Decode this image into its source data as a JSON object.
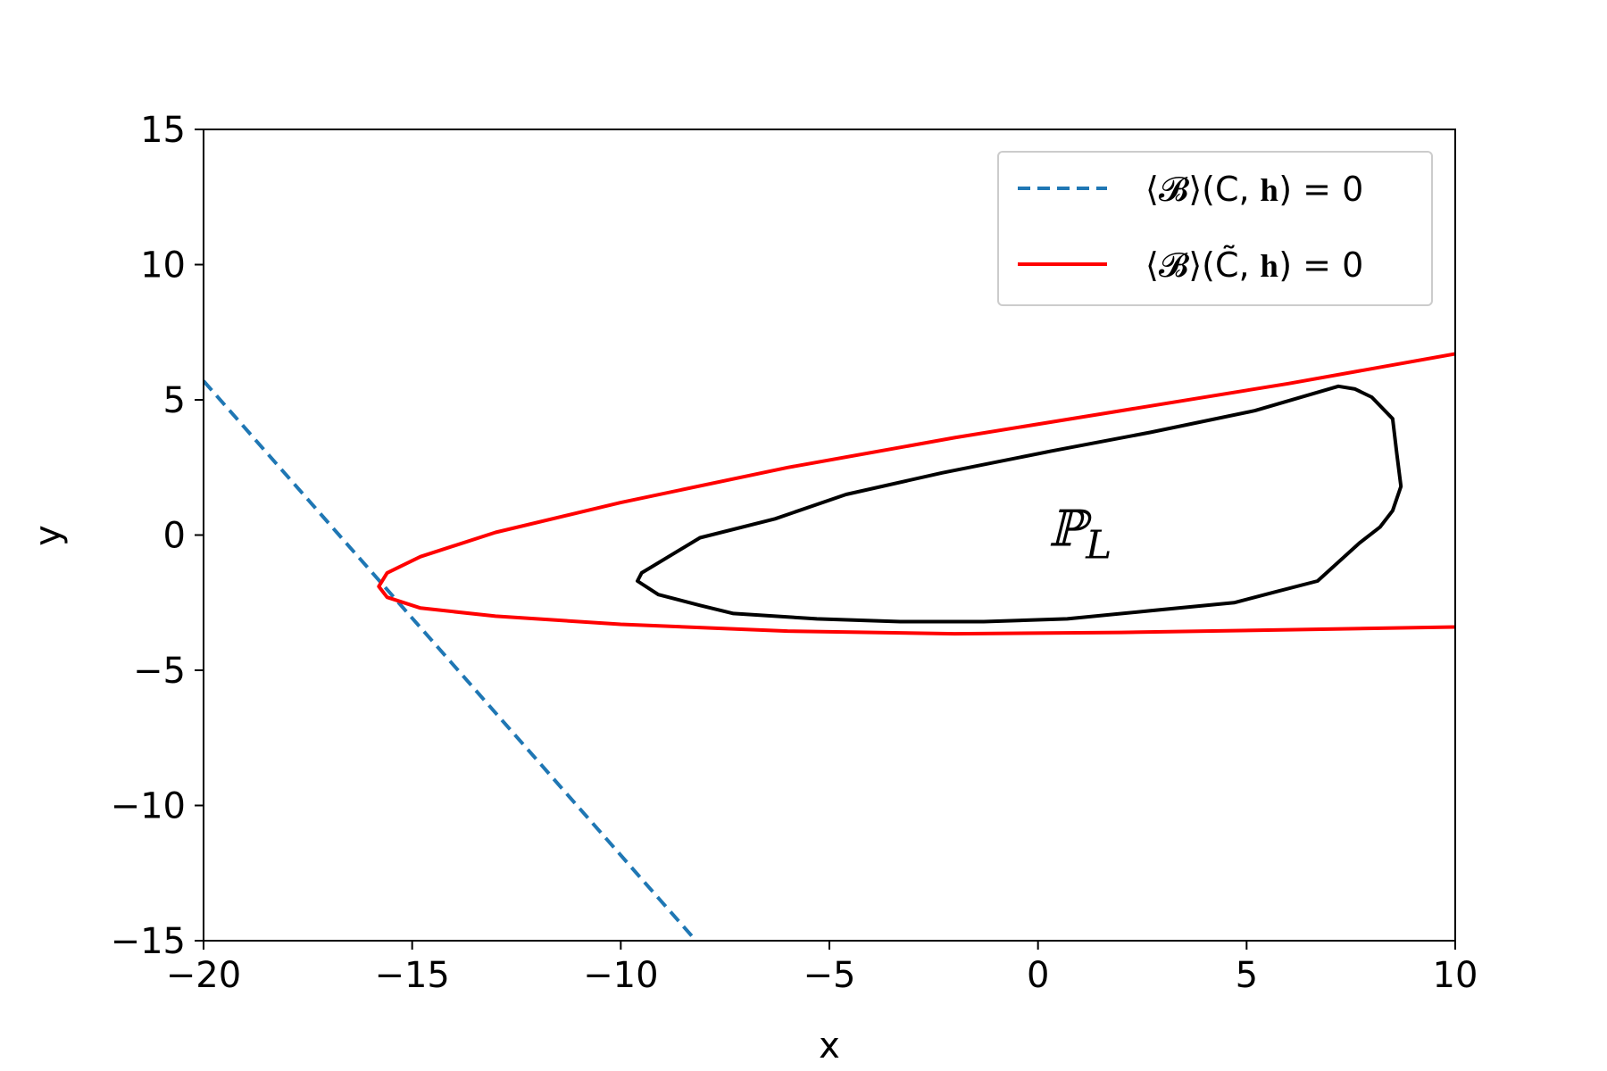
{
  "chart_data": {
    "type": "line",
    "title": "",
    "xlabel": "x",
    "ylabel": "y",
    "xlim": [
      -20,
      10
    ],
    "ylim": [
      -15,
      15
    ],
    "xticks": [
      -20,
      -15,
      -10,
      -5,
      0,
      5,
      10
    ],
    "yticks": [
      -15,
      -10,
      -5,
      0,
      5,
      10,
      15
    ],
    "xtick_labels": [
      "−20",
      "−15",
      "−10",
      "−5",
      "0",
      "5",
      "10"
    ],
    "ytick_labels": [
      "−15",
      "−10",
      "−5",
      "0",
      "5",
      "10",
      "15"
    ],
    "grid": false,
    "legend_position": "top-right",
    "series": [
      {
        "name": "⟨𝓑⟩(C, 𝐡) = 0",
        "style": "dashed",
        "color": "#1f77b4",
        "x": [
          -20,
          -8.2
        ],
        "y": [
          5.7,
          -15
        ]
      },
      {
        "name": "⟨𝓑⟩(C̃, 𝐡) = 0",
        "style": "solid",
        "color": "#ff0000",
        "x": [
          10,
          6,
          2,
          -2,
          -6,
          -10,
          -13,
          -14.8,
          -15.6,
          -15.8,
          -15.6,
          -14.8,
          -13,
          -10,
          -6,
          -2,
          2,
          6,
          10
        ],
        "y": [
          6.7,
          5.6,
          4.6,
          3.6,
          2.5,
          1.2,
          0.1,
          -0.8,
          -1.4,
          -1.9,
          -2.3,
          -2.7,
          -3.0,
          -3.3,
          -3.55,
          -3.65,
          -3.6,
          -3.5,
          -3.4
        ]
      }
    ],
    "region": {
      "label": "ℙ",
      "subscript": "L",
      "label_x": 0,
      "label_y": 0,
      "color": "#000000",
      "x": [
        7.2,
        7.6,
        8.0,
        8.5,
        8.6,
        8.7,
        8.5,
        8.2,
        7.7,
        6.7,
        5.7,
        4.7,
        2.7,
        0.7,
        -1.3,
        -3.3,
        -5.3,
        -7.3,
        -8.1,
        -9.1,
        -9.6,
        -9.5,
        -8.1,
        -6.3,
        -4.6,
        -2.3,
        0.3,
        2.7,
        5.2,
        7.2
      ],
      "y": [
        5.5,
        5.4,
        5.1,
        4.3,
        3.0,
        1.8,
        0.9,
        0.3,
        -0.3,
        -1.7,
        -2.1,
        -2.5,
        -2.8,
        -3.1,
        -3.2,
        -3.2,
        -3.1,
        -2.9,
        -2.6,
        -2.2,
        -1.7,
        -1.4,
        -0.1,
        0.6,
        1.5,
        2.3,
        3.1,
        3.8,
        4.6,
        5.5
      ]
    }
  }
}
